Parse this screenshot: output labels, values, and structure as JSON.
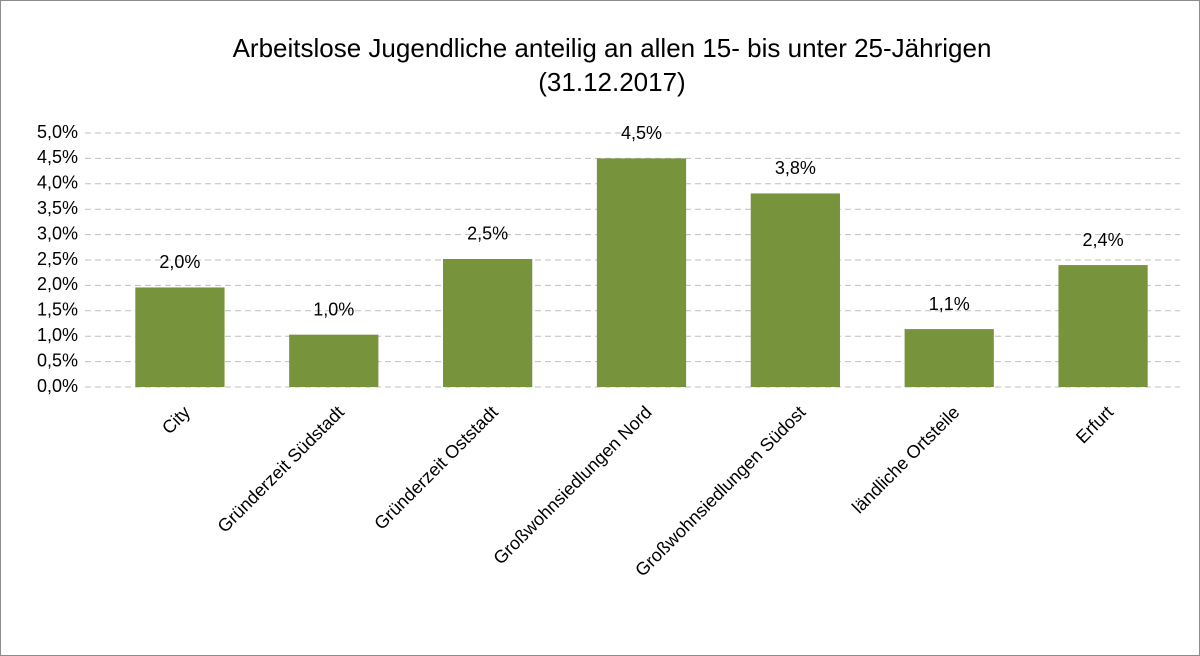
{
  "chart_data": {
    "type": "bar",
    "title": [
      "Arbeitslose Jugendliche anteilig an allen 15- bis unter 25-Jährigen",
      "(31.12.2017)"
    ],
    "categories": [
      "City",
      "Gründerzeit Südstadt",
      "Gründerzeit Oststadt",
      "Großwohnsiedlungen Nord",
      "Großwohnsiedlungen Südost",
      "ländliche Ortsteile",
      "Erfurt"
    ],
    "values": [
      1.96,
      1.03,
      2.52,
      4.5,
      3.81,
      1.14,
      2.4
    ],
    "value_labels": [
      "2,0%",
      "1,0%",
      "2,5%",
      "4,5%",
      "3,8%",
      "1,1%",
      "2,4%"
    ],
    "color": "#77933c",
    "ylim": [
      0,
      5
    ],
    "yticks": [
      {
        "value": 0,
        "label": "0,0%"
      },
      {
        "value": 0.5,
        "label": "0,5%"
      },
      {
        "value": 1,
        "label": "1,0%"
      },
      {
        "value": 1.5,
        "label": "1,5%"
      },
      {
        "value": 2,
        "label": "2,0%"
      },
      {
        "value": 2.5,
        "label": "2,5%"
      },
      {
        "value": 3,
        "label": "3,0%"
      },
      {
        "value": 3.5,
        "label": "3,5%"
      },
      {
        "value": 4,
        "label": "4,0%"
      },
      {
        "value": 4.5,
        "label": "4,5%"
      },
      {
        "value": 5,
        "label": "5,0%"
      }
    ],
    "grid": true
  }
}
